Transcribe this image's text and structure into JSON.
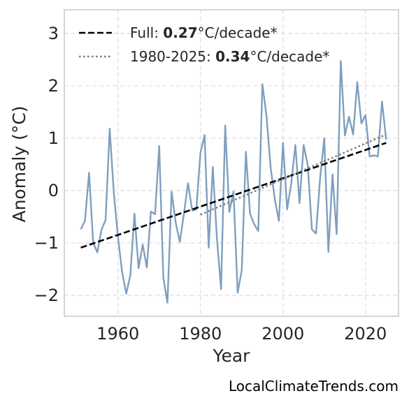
{
  "chart_data": {
    "type": "line",
    "xlabel": "Year",
    "ylabel": "Anomaly (°C)",
    "xlim": [
      1947,
      2028
    ],
    "ylim": [
      -2.4,
      3.45
    ],
    "xticks": [
      1960,
      1980,
      2000,
      2020
    ],
    "yticks": [
      -2,
      -1,
      0,
      1,
      2,
      3
    ],
    "ytick_labels": [
      "−2",
      "−1",
      "0",
      "1",
      "2",
      "3"
    ],
    "grid": true,
    "legend_position": "top-left",
    "series": [
      {
        "style": "solid",
        "color": "#7f9fbf",
        "x": [
          1951,
          1952,
          1953,
          1954,
          1955,
          1956,
          1957,
          1958,
          1959,
          1960,
          1961,
          1962,
          1963,
          1964,
          1965,
          1966,
          1967,
          1968,
          1969,
          1970,
          1971,
          1972,
          1973,
          1974,
          1975,
          1976,
          1977,
          1978,
          1979,
          1980,
          1981,
          1982,
          1983,
          1984,
          1985,
          1986,
          1987,
          1988,
          1989,
          1990,
          1991,
          1992,
          1993,
          1994,
          1995,
          1996,
          1997,
          1998,
          1999,
          2000,
          2001,
          2002,
          2003,
          2004,
          2005,
          2006,
          2007,
          2008,
          2009,
          2010,
          2011,
          2012,
          2013,
          2014,
          2015,
          2016,
          2017,
          2018,
          2019,
          2020,
          2021,
          2022,
          2023,
          2024,
          2025
        ],
        "values": [
          -0.74,
          -0.58,
          0.34,
          -1.0,
          -1.18,
          -0.75,
          -0.56,
          1.18,
          -0.05,
          -0.88,
          -1.55,
          -1.97,
          -1.62,
          -0.44,
          -1.48,
          -1.03,
          -1.47,
          -0.4,
          -0.45,
          0.85,
          -1.66,
          -2.14,
          -0.02,
          -0.61,
          -0.98,
          -0.44,
          0.14,
          -0.38,
          -0.36,
          0.72,
          1.06,
          -1.09,
          0.45,
          -0.92,
          -1.88,
          1.24,
          -0.41,
          -0.02,
          -1.95,
          -1.52,
          0.74,
          -0.44,
          -0.64,
          -0.77,
          2.03,
          1.42,
          0.44,
          -0.16,
          -0.58,
          0.91,
          -0.36,
          0.14,
          0.87,
          -0.24,
          0.87,
          0.48,
          -0.74,
          -0.82,
          0.24,
          1.0,
          -1.17,
          0.31,
          -0.83,
          2.47,
          1.05,
          1.41,
          1.07,
          2.07,
          1.28,
          1.44,
          0.65,
          0.67,
          0.65,
          1.7,
          0.97
        ]
      }
    ],
    "trends": [
      {
        "style": "dashed",
        "color": "#000000",
        "label_prefix": "Full: ",
        "rate": "0.27",
        "label_suffix": "°C/decade*",
        "x": [
          1951,
          2025
        ],
        "values": [
          -1.09,
          0.91
        ]
      },
      {
        "style": "dotted",
        "color": "#808080",
        "label_prefix": "1980-2025: ",
        "rate": "0.34",
        "label_suffix": "°C/decade*",
        "x": [
          1980,
          2025
        ],
        "values": [
          -0.46,
          1.07
        ]
      }
    ]
  },
  "credit": "LocalClimateTrends.com"
}
